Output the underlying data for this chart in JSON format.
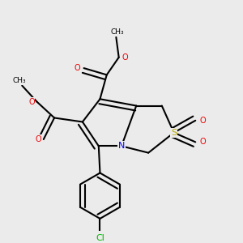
{
  "bg_color": "#ebebeb",
  "atom_colors": {
    "C": "#000000",
    "N": "#0000ee",
    "O": "#ee0000",
    "S": "#bbaa00",
    "Cl": "#00bb00"
  },
  "bond_color": "#000000",
  "bond_width": 1.5,
  "label_fontsize": 8.0,
  "label_fontsize_small": 7.0
}
